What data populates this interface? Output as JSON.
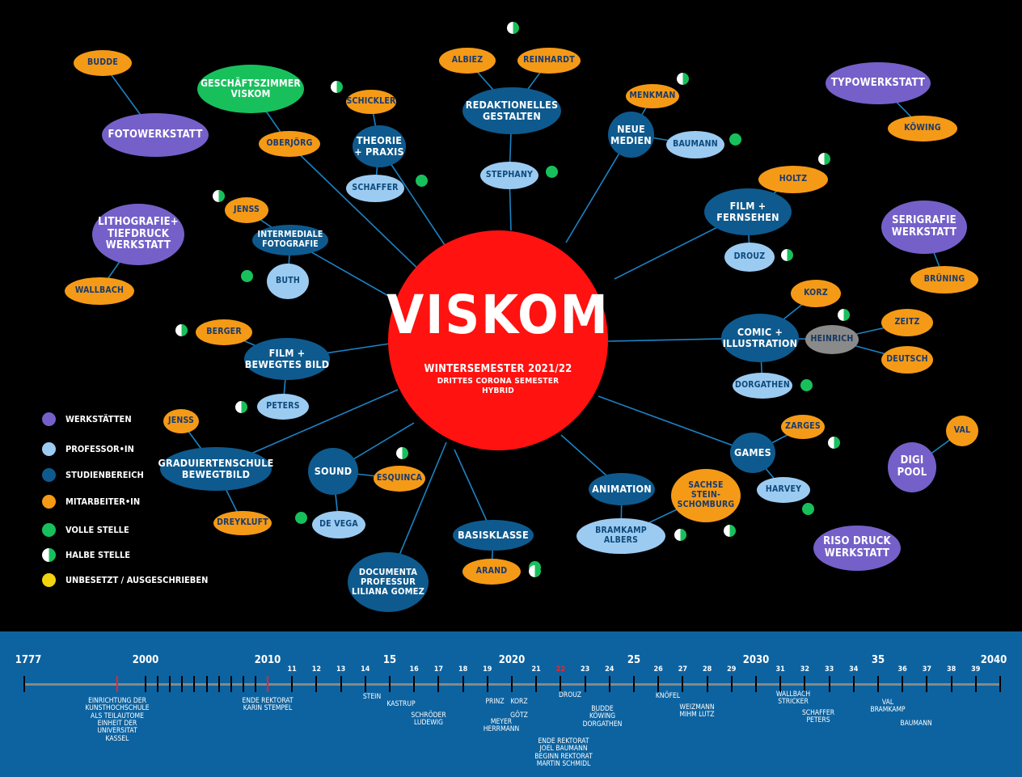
{
  "center": {
    "title": "VISKOM",
    "subtitle": "WINTERSEMESTER 2021/22",
    "line2": "DRITTES CORONA SEMESTER",
    "line3": "HYBRID"
  },
  "nodes": {
    "budde": "BUDDE",
    "fotowerkstatt": "FOTOWERKSTATT",
    "geschaeftszimmer": "GESCHÄFTSZIMMER\nVISKOM",
    "oberjoerg": "OBERJÖRG",
    "schickler": "SCHICKLER",
    "theorie": "THEORIE\n+ PRAXIS",
    "schaffer": "SCHAFFER",
    "albiez": "ALBIEZ",
    "reinhardt": "REINHARDT",
    "redaktionelles": "REDAKTIONELLES\nGESTALTEN",
    "stephany": "STEPHANY",
    "menkman": "MENKMAN",
    "neue_medien": "NEUE\nMEDIEN",
    "baumann": "BAUMANN",
    "typowerkstatt": "TYPOWERKSTATT",
    "koewing": "KÖWING",
    "lithografie": "LITHOGRAFIE+\nTIEFDRUCK\nWERKSTATT",
    "wallbach": "WALLBACH",
    "jenss1": "JENSS",
    "intermediale": "INTERMEDIALE\nFOTOGRAFIE",
    "buth": "BUTH",
    "holtz": "HOLTZ",
    "film_fernsehen": "FILM +\nFERNSEHEN",
    "drouz": "DROUZ",
    "serigrafie": "SERIGRAFIE\nWERKSTATT",
    "bruening": "BRÜNING",
    "berger": "BERGER",
    "film_bewegtes": "FILM +\nBEWEGTES BILD",
    "peters": "PETERS",
    "korz": "KORZ",
    "comic": "COMIC +\nILLUSTRATION",
    "heinrich": "HEINRICH",
    "zeitz": "ZEITZ",
    "deutsch": "DEUTSCH",
    "dorgathen": "DORGATHEN",
    "jenss2": "JENSS",
    "graduierten": "GRADUIERTENSCHULE\nBEWEGTBILD",
    "dreykluft": "DREYKLUFT",
    "sound": "SOUND",
    "esquinca": "ESQUINCA",
    "de_vega": "DE VEGA",
    "documenta": "DOCUMENTA\nPROFESSUR\nLILIANA GOMEZ",
    "basisklasse": "BASISKLASSE",
    "arand": "ARAND",
    "animation": "ANIMATION",
    "bramkamp": "BRAMKAMP\nALBERS",
    "sachse": "SACHSE\nSTEIN-\nSCHOMBURG",
    "zarges": "ZARGES",
    "games": "GAMES",
    "harvey": "HARVEY",
    "val": "VAL",
    "digi_pool": "DIGI\nPOOL",
    "riso": "RISO DRUCK\nWERKSTATT"
  },
  "legend": [
    {
      "label": "WERKSTÄTTEN",
      "color": "#7560c9"
    },
    {
      "label": "PROFESSOR•IN",
      "color": "#9ccbf2"
    },
    {
      "label": "STUDIENBEREICH",
      "color": "#0e5a8e"
    },
    {
      "label": "MITARBEITER•IN",
      "color": "#f59a16"
    },
    {
      "label": "VOLLE STELLE",
      "color": "#18c05c"
    },
    {
      "label": "HALBE STELLE",
      "color": "half"
    },
    {
      "label": "UNBESETZT / AUSGESCHRIEBEN",
      "color": "#f2d30f"
    }
  ],
  "timeline": {
    "big_labels": [
      "1777",
      "2000",
      "2010",
      "15",
      "2020",
      "25",
      "2030",
      "35",
      "2040"
    ],
    "small_labels": [
      "11",
      "12",
      "13",
      "14",
      "16",
      "17",
      "18",
      "19",
      "21",
      "22",
      "23",
      "24",
      "26",
      "27",
      "28",
      "29",
      "31",
      "32",
      "33",
      "34",
      "36",
      "37",
      "38",
      "39"
    ],
    "events": {
      "kunsthochschule": "EINRICHTUNG DER\nKUNSTHOCHSCHULE\nALS TEILAUTOME\nEINHEIT DER\nUNIVERSITAT\nKASSEL",
      "rektorat_stempel": "ENDE REKTORAT\nKARIN STEMPEL",
      "stein": "STEIN",
      "kastrup": "KASTRUP",
      "schroeder": "SCHRÖDER\nLUDEWIG",
      "prinz": "PRINZ",
      "korz": "KORZ",
      "goetz": "GÖTZ",
      "meyer": "MEYER\nHERRMANN",
      "drouz": "DROUZ",
      "rektorat_baumann": "ENDE REKTORAT\nJOEL BAUMANN\nBEGINN REKTORAT\nMARTIN SCHMIDL",
      "budde": "BUDDE\nKÖWING\nDORGATHEN",
      "knoefel": "KNÖFEL",
      "weizmann": "WEIZMANN\nMIHM LUTZ",
      "wallbach": "WALLBACH\nSTRICKER",
      "schaffer": "SCHAFFER\nPETERS",
      "val": "VAL\nBRAMKAMP",
      "baumann": "BAUMANN"
    }
  }
}
